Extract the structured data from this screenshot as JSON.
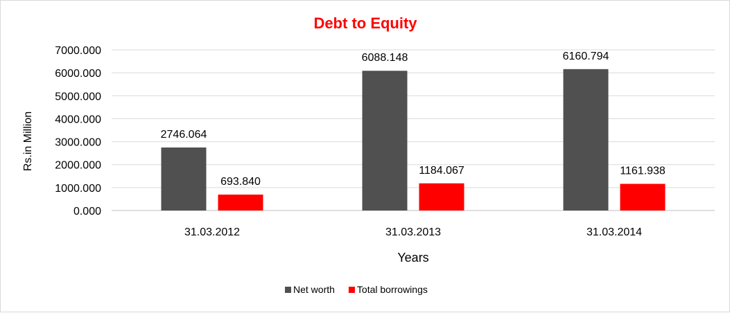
{
  "chart_data": {
    "type": "bar",
    "title": "Debt to Equity",
    "xlabel": "Years",
    "ylabel": "Rs.in Million",
    "categories": [
      "31.03.2012",
      "31.03.2013",
      "31.03.2014"
    ],
    "series": [
      {
        "name": "Net worth",
        "color": "#505050",
        "values": [
          2746.064,
          6088.148,
          6160.794
        ],
        "labels": [
          "2746.064",
          "6088.148",
          "6160.794"
        ]
      },
      {
        "name": "Total borrowings",
        "color": "#ff0000",
        "values": [
          693.84,
          1184.067,
          1161.938
        ],
        "labels": [
          "693.840",
          "1184.067",
          "1161.938"
        ]
      }
    ],
    "ylim": [
      0,
      7000
    ],
    "yticks": [
      "0.000",
      "1000.000",
      "2000.000",
      "3000.000",
      "4000.000",
      "5000.000",
      "6000.000",
      "7000.000"
    ],
    "grid": true,
    "legend_position": "bottom",
    "title_color": "#ff0000"
  }
}
